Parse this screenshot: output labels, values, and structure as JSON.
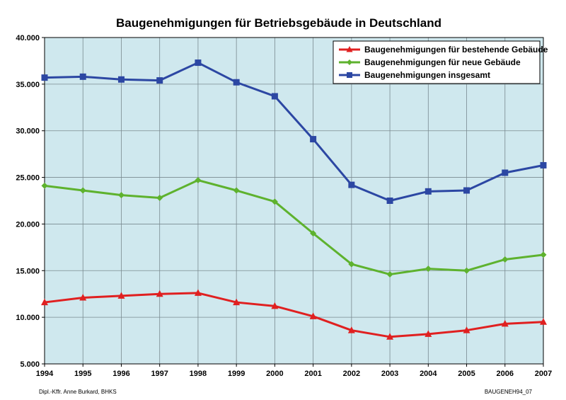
{
  "chart_data": {
    "type": "line",
    "title": "Baugenehmigungen für Betriebsgebäude in Deutschland",
    "x": [
      "1994",
      "1995",
      "1996",
      "1997",
      "1998",
      "1999",
      "2000",
      "2001",
      "2002",
      "2003",
      "2004",
      "2005",
      "2006",
      "2007"
    ],
    "ylim": [
      5000,
      40000
    ],
    "yticks": [
      5000,
      10000,
      15000,
      20000,
      25000,
      30000,
      35000,
      40000
    ],
    "ytick_labels": [
      "5.000",
      "10.000",
      "15.000",
      "20.000",
      "25.000",
      "30.000",
      "35.000",
      "40.000"
    ],
    "grid": true,
    "legend_position": "top-right",
    "series": [
      {
        "name": "Baugenehmigungen für bestehende Gebäude",
        "color": "#e02020",
        "marker": "triangle",
        "values": [
          11600,
          12100,
          12300,
          12500,
          12600,
          11600,
          11200,
          10100,
          8600,
          7900,
          8200,
          8600,
          9300,
          9500
        ]
      },
      {
        "name": "Baugenehmigungen für neue Gebäude",
        "color": "#5eb22e",
        "marker": "diamond",
        "values": [
          24100,
          23600,
          23100,
          22800,
          24700,
          23600,
          22400,
          19000,
          15700,
          14600,
          15200,
          15000,
          16200,
          16700
        ]
      },
      {
        "name": "Baugenehmigungen insgesamt",
        "color": "#2c47a3",
        "marker": "square",
        "values": [
          35700,
          35800,
          35500,
          35400,
          37300,
          35200,
          33700,
          29100,
          24200,
          22500,
          23500,
          23600,
          25500,
          26300
        ]
      }
    ]
  },
  "footer": {
    "left": "Dipl.-Kffr. Anne Burkard, BHKS",
    "right": "BAUGENEH94_07"
  }
}
